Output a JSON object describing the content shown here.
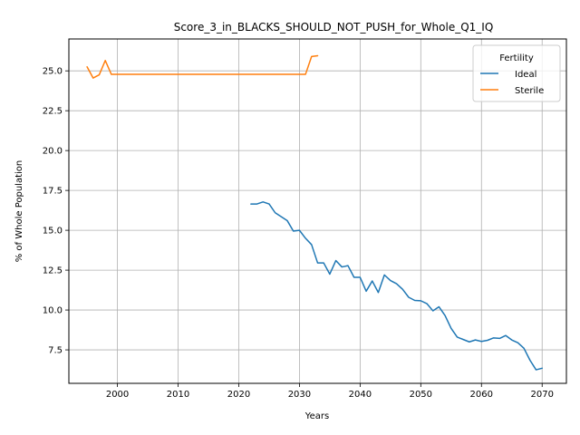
{
  "chart_data": {
    "type": "line",
    "title": "Score_3_in_BLACKS_SHOULD_NOT_PUSH_for_Whole_Q1_IQ",
    "xlabel": "Years",
    "ylabel": "% of Whole Population",
    "xlim": [
      1992,
      2074
    ],
    "ylim": [
      5.4,
      27.0
    ],
    "xticks": [
      2000,
      2010,
      2020,
      2030,
      2040,
      2050,
      2060,
      2070
    ],
    "yticks": [
      7.5,
      10.0,
      12.5,
      15.0,
      17.5,
      20.0,
      22.5,
      25.0
    ],
    "ytick_labels": [
      "7.5",
      "10.0",
      "12.5",
      "15.0",
      "17.5",
      "20.0",
      "22.5",
      "25.0"
    ],
    "grid": true,
    "legend": {
      "title": "Fertility",
      "position": "top-right"
    },
    "series": [
      {
        "name": "Ideal",
        "color": "#1f77b4",
        "x": [
          2022,
          2023,
          2024,
          2025,
          2026,
          2027,
          2028,
          2029,
          2030,
          2031,
          2032,
          2033,
          2034,
          2035,
          2036,
          2037,
          2038,
          2039,
          2040,
          2041,
          2042,
          2043,
          2044,
          2045,
          2046,
          2047,
          2048,
          2049,
          2050,
          2051,
          2052,
          2053,
          2054,
          2055,
          2056,
          2057,
          2058,
          2059,
          2060,
          2061,
          2062,
          2063,
          2064,
          2065,
          2066,
          2067,
          2068,
          2069,
          2070
        ],
        "y": [
          16.65,
          16.65,
          16.78,
          16.65,
          16.1,
          15.85,
          15.6,
          14.95,
          15.0,
          14.5,
          14.1,
          12.95,
          12.95,
          12.25,
          13.1,
          12.7,
          12.78,
          12.05,
          12.05,
          11.18,
          11.82,
          11.1,
          12.2,
          11.85,
          11.65,
          11.3,
          10.8,
          10.6,
          10.58,
          10.4,
          9.95,
          10.2,
          9.65,
          8.85,
          8.3,
          8.15,
          8.0,
          8.12,
          8.03,
          8.1,
          8.25,
          8.22,
          8.4,
          8.12,
          7.95,
          7.6,
          6.85,
          6.25,
          6.35
        ]
      },
      {
        "name": "Sterile",
        "color": "#ff7f0e",
        "x": [
          1995,
          1996,
          1997,
          1998,
          1999,
          2000,
          2001,
          2002,
          2003,
          2004,
          2005,
          2006,
          2007,
          2008,
          2009,
          2010,
          2011,
          2012,
          2013,
          2014,
          2015,
          2016,
          2017,
          2018,
          2019,
          2020,
          2021,
          2022,
          2023,
          2024,
          2025,
          2026,
          2027,
          2028,
          2029,
          2030,
          2031,
          2032,
          2033
        ],
        "y": [
          25.25,
          24.55,
          24.75,
          25.65,
          24.78,
          24.78,
          24.78,
          24.78,
          24.78,
          24.78,
          24.78,
          24.78,
          24.78,
          24.78,
          24.78,
          24.78,
          24.78,
          24.78,
          24.78,
          24.78,
          24.78,
          24.78,
          24.78,
          24.78,
          24.78,
          24.78,
          24.78,
          24.78,
          24.78,
          24.78,
          24.78,
          24.78,
          24.78,
          24.78,
          24.78,
          24.78,
          24.78,
          25.9,
          25.95
        ]
      }
    ]
  }
}
